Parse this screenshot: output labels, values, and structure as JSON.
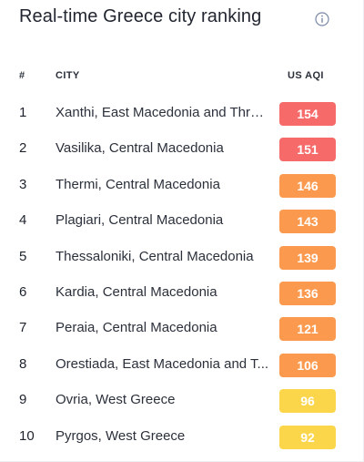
{
  "header": {
    "title": "Real-time Greece city ranking",
    "info_icon": "info-circle-icon"
  },
  "table": {
    "columns": {
      "rank": "#",
      "city": "CITY",
      "aqi": "US AQI"
    },
    "rows": [
      {
        "rank": "1",
        "city": "Xanthi, East Macedonia and Thrace",
        "aqi": "154",
        "color": "#f66a6a"
      },
      {
        "rank": "2",
        "city": "Vasilika, Central Macedonia",
        "aqi": "151",
        "color": "#f66a6a"
      },
      {
        "rank": "3",
        "city": "Thermi, Central Macedonia",
        "aqi": "146",
        "color": "#fb9a4e"
      },
      {
        "rank": "4",
        "city": "Plagiari, Central Macedonia",
        "aqi": "143",
        "color": "#fb9a4e"
      },
      {
        "rank": "5",
        "city": "Thessaloniki, Central Macedonia",
        "aqi": "139",
        "color": "#fb9a4e"
      },
      {
        "rank": "6",
        "city": "Kardia, Central Macedonia",
        "aqi": "136",
        "color": "#fb9a4e"
      },
      {
        "rank": "7",
        "city": "Peraia, Central Macedonia",
        "aqi": "121",
        "color": "#fb9a4e"
      },
      {
        "rank": "8",
        "city": "Orestiada, East Macedonia and T...",
        "aqi": "106",
        "color": "#fb9a4e"
      },
      {
        "rank": "9",
        "city": "Ovria, West Greece",
        "aqi": "96",
        "color": "#fbd54a"
      },
      {
        "rank": "10",
        "city": "Pyrgos, West Greece",
        "aqi": "92",
        "color": "#fbd54a"
      }
    ]
  }
}
